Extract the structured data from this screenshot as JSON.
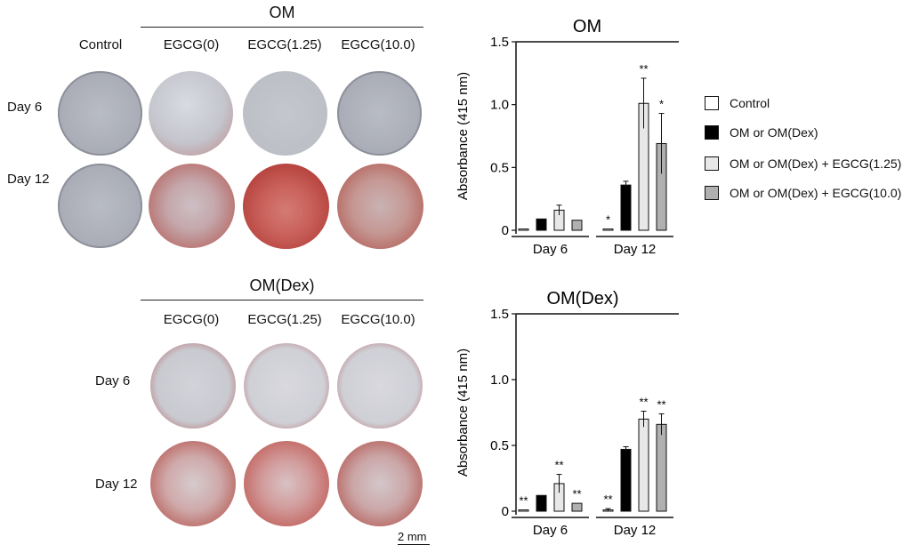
{
  "top_panel": {
    "header": "OM",
    "control_label": "Control",
    "col_labels": [
      "EGCG(0)",
      "EGCG(1.25)",
      "EGCG(10.0)"
    ],
    "row_labels": [
      "Day 6",
      "Day 12"
    ]
  },
  "bottom_panel": {
    "header": "OM(Dex)",
    "col_labels": [
      "EGCG(0)",
      "EGCG(1.25)",
      "EGCG(10.0)"
    ],
    "row_labels": [
      "Day 6",
      "Day 12"
    ]
  },
  "scale_bar": "2 mm",
  "legend": [
    {
      "label": "Control",
      "color": "#ffffff"
    },
    {
      "label": "OM or OM(Dex)",
      "color": "#000000"
    },
    {
      "label": "OM or OM(Dex) + EGCG(1.25)",
      "color": "#e8e8e8"
    },
    {
      "label": "OM or OM(Dex) + EGCG(10.0)",
      "color": "#b0b0b0"
    }
  ],
  "chart_data": [
    {
      "type": "bar",
      "title": "OM",
      "ylabel": "Absorbance (415 nm)",
      "ylim": [
        0,
        1.5
      ],
      "yticks": [
        "0",
        "0.5",
        "1.0",
        "1.5"
      ],
      "categories": [
        "Day 6",
        "Day 12"
      ],
      "series": [
        {
          "name": "Control",
          "values": [
            0.01,
            0.01
          ],
          "errors": [
            0.0,
            0.0
          ],
          "marks": [
            "",
            "*"
          ]
        },
        {
          "name": "OM or OM(Dex)",
          "values": [
            0.09,
            0.36
          ],
          "errors": [
            0.0,
            0.03
          ],
          "marks": [
            "",
            ""
          ]
        },
        {
          "name": "OM or OM(Dex) + EGCG(1.25)",
          "values": [
            0.16,
            1.01
          ],
          "errors": [
            0.04,
            0.2
          ],
          "marks": [
            "",
            "**"
          ]
        },
        {
          "name": "OM or OM(Dex) + EGCG(10.0)",
          "values": [
            0.08,
            0.69
          ],
          "errors": [
            0.0,
            0.24
          ],
          "marks": [
            "",
            "*"
          ]
        }
      ]
    },
    {
      "type": "bar",
      "title": "OM(Dex)",
      "ylabel": "Absorbance (415 nm)",
      "ylim": [
        0,
        1.5
      ],
      "yticks": [
        "0",
        "0.5",
        "1.0",
        "1.5"
      ],
      "categories": [
        "Day 6",
        "Day 12"
      ],
      "series": [
        {
          "name": "Control",
          "values": [
            0.01,
            0.01
          ],
          "errors": [
            0.0,
            0.01
          ],
          "marks": [
            "**",
            "**"
          ]
        },
        {
          "name": "OM or OM(Dex)",
          "values": [
            0.12,
            0.47
          ],
          "errors": [
            0.0,
            0.02
          ],
          "marks": [
            "",
            ""
          ]
        },
        {
          "name": "OM or OM(Dex) + EGCG(1.25)",
          "values": [
            0.21,
            0.7
          ],
          "errors": [
            0.07,
            0.06
          ],
          "marks": [
            "**",
            "**"
          ]
        },
        {
          "name": "OM or OM(Dex) + EGCG(10.0)",
          "values": [
            0.06,
            0.66
          ],
          "errors": [
            0.0,
            0.08
          ],
          "marks": [
            "**",
            "**"
          ]
        }
      ]
    }
  ]
}
